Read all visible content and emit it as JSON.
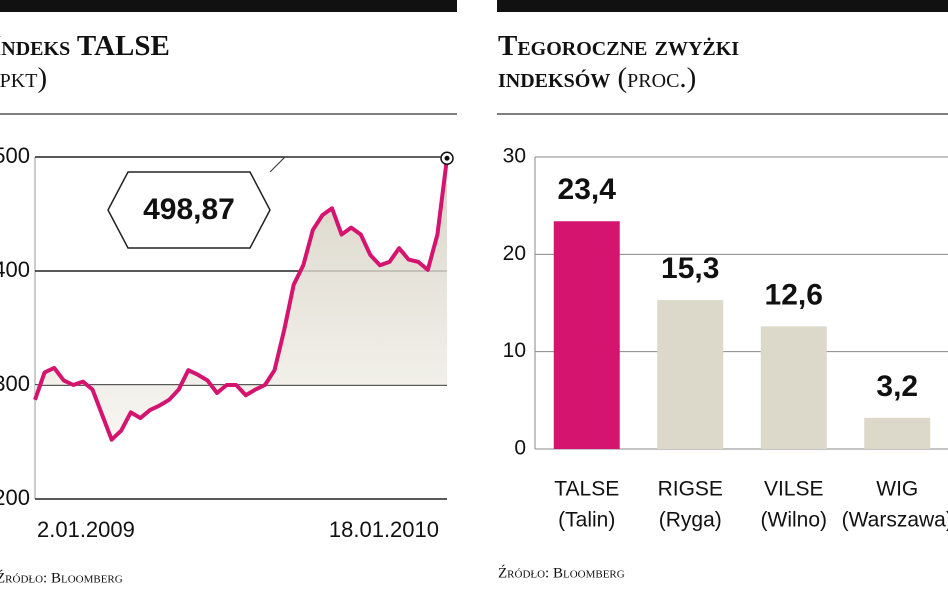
{
  "chart_data": [
    {
      "type": "line",
      "title": "Indeks TALSE",
      "subtitle": "(pkt)",
      "categories": [
        "2.01.2009",
        null,
        null,
        null,
        null,
        null,
        null,
        null,
        null,
        null,
        null,
        null,
        null,
        null,
        null,
        null,
        null,
        null,
        null,
        null,
        null,
        null,
        null,
        null,
        null,
        null,
        null,
        null,
        null,
        null,
        null,
        null,
        null,
        null,
        null,
        null,
        null,
        null,
        null,
        null,
        null,
        null,
        null,
        "18.01.2010"
      ],
      "values": [
        287,
        311,
        315,
        304,
        300,
        303,
        296,
        274,
        252,
        260,
        276,
        271,
        278,
        282,
        287,
        296,
        313,
        309,
        304,
        293,
        300,
        300,
        291,
        296,
        300,
        313,
        348,
        388,
        405,
        436,
        449,
        455,
        432,
        438,
        432,
        414,
        405,
        408,
        420,
        410,
        408,
        401,
        432,
        498.87
      ],
      "annotation": "498,87",
      "color": "#d4146f",
      "ylim": [
        200,
        500
      ],
      "yticks": [
        200,
        300,
        400,
        500
      ],
      "grid": true,
      "source": "Źródło: Bloomberg"
    },
    {
      "type": "bar",
      "title": "Tegoroczne zwyżki indeksów",
      "subtitle": "(proc.)",
      "categories": [
        [
          "TALSE",
          "(Talin)"
        ],
        [
          "RIGSE",
          "(Ryga)"
        ],
        [
          "VILSE",
          "(Wilno)"
        ],
        [
          "WIG",
          "(Warszawa)"
        ]
      ],
      "values": [
        23.4,
        15.3,
        12.6,
        3.2
      ],
      "value_labels": [
        "23,4",
        "15,3",
        "12,6",
        "3,2"
      ],
      "colors": [
        "#d4146f",
        "#dcd9cb",
        "#dcd9cb",
        "#dcd9cb"
      ],
      "ylim": [
        0,
        30
      ],
      "yticks": [
        0,
        10,
        20,
        30
      ],
      "grid": true,
      "source": "Źródło: Bloomberg"
    }
  ]
}
